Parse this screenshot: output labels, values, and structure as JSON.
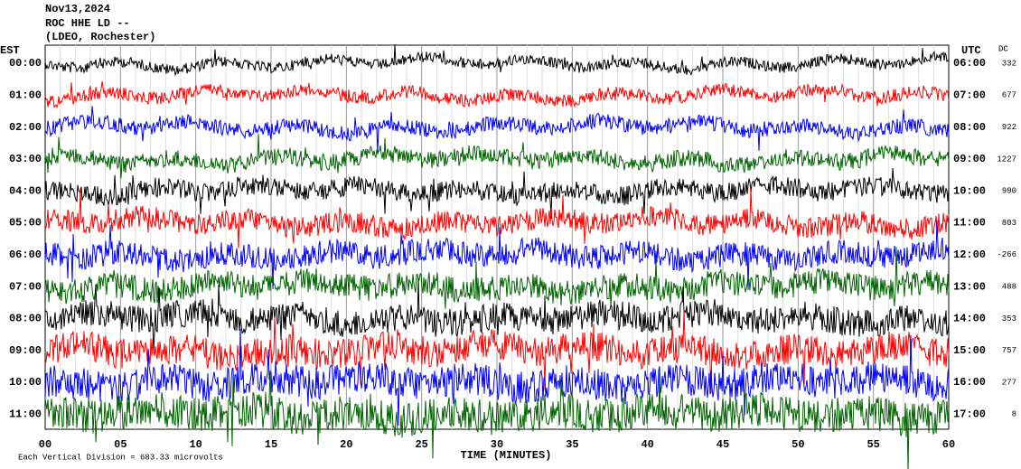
{
  "header": {
    "date": "Nov13,2024",
    "station": "ROC HHE LD --",
    "network": "(LDEO, Rochester)"
  },
  "left_label": "EST",
  "right_label": "UTC",
  "dc_label": "DC",
  "rows": [
    {
      "est": "00:00",
      "utc": "06:00",
      "dc": "332",
      "color": "#000000"
    },
    {
      "est": "01:00",
      "utc": "07:00",
      "dc": "677",
      "color": "#ff0000"
    },
    {
      "est": "02:00",
      "utc": "08:00",
      "dc": "922",
      "color": "#0000ff"
    },
    {
      "est": "03:00",
      "utc": "09:00",
      "dc": "1227",
      "color": "#006400"
    },
    {
      "est": "04:00",
      "utc": "10:00",
      "dc": "990",
      "color": "#000000"
    },
    {
      "est": "05:00",
      "utc": "11:00",
      "dc": "803",
      "color": "#ff0000"
    },
    {
      "est": "06:00",
      "utc": "12:00",
      "dc": "-266",
      "color": "#0000ff"
    },
    {
      "est": "07:00",
      "utc": "13:00",
      "dc": "488",
      "color": "#006400"
    },
    {
      "est": "08:00",
      "utc": "14:00",
      "dc": "353",
      "color": "#000000"
    },
    {
      "est": "09:00",
      "utc": "15:00",
      "dc": "757",
      "color": "#ff0000"
    },
    {
      "est": "10:00",
      "utc": "16:00",
      "dc": "277",
      "color": "#0000ff"
    },
    {
      "est": "11:00",
      "utc": "17:00",
      "dc": "8",
      "color": "#006400"
    }
  ],
  "x_axis": {
    "labels": [
      "00",
      "05",
      "10",
      "15",
      "20",
      "25",
      "30",
      "35",
      "40",
      "45",
      "50",
      "55",
      "60"
    ],
    "title": "TIME (MINUTES)"
  },
  "footer": "Each Vertical Division = 683.33 microvolts"
}
